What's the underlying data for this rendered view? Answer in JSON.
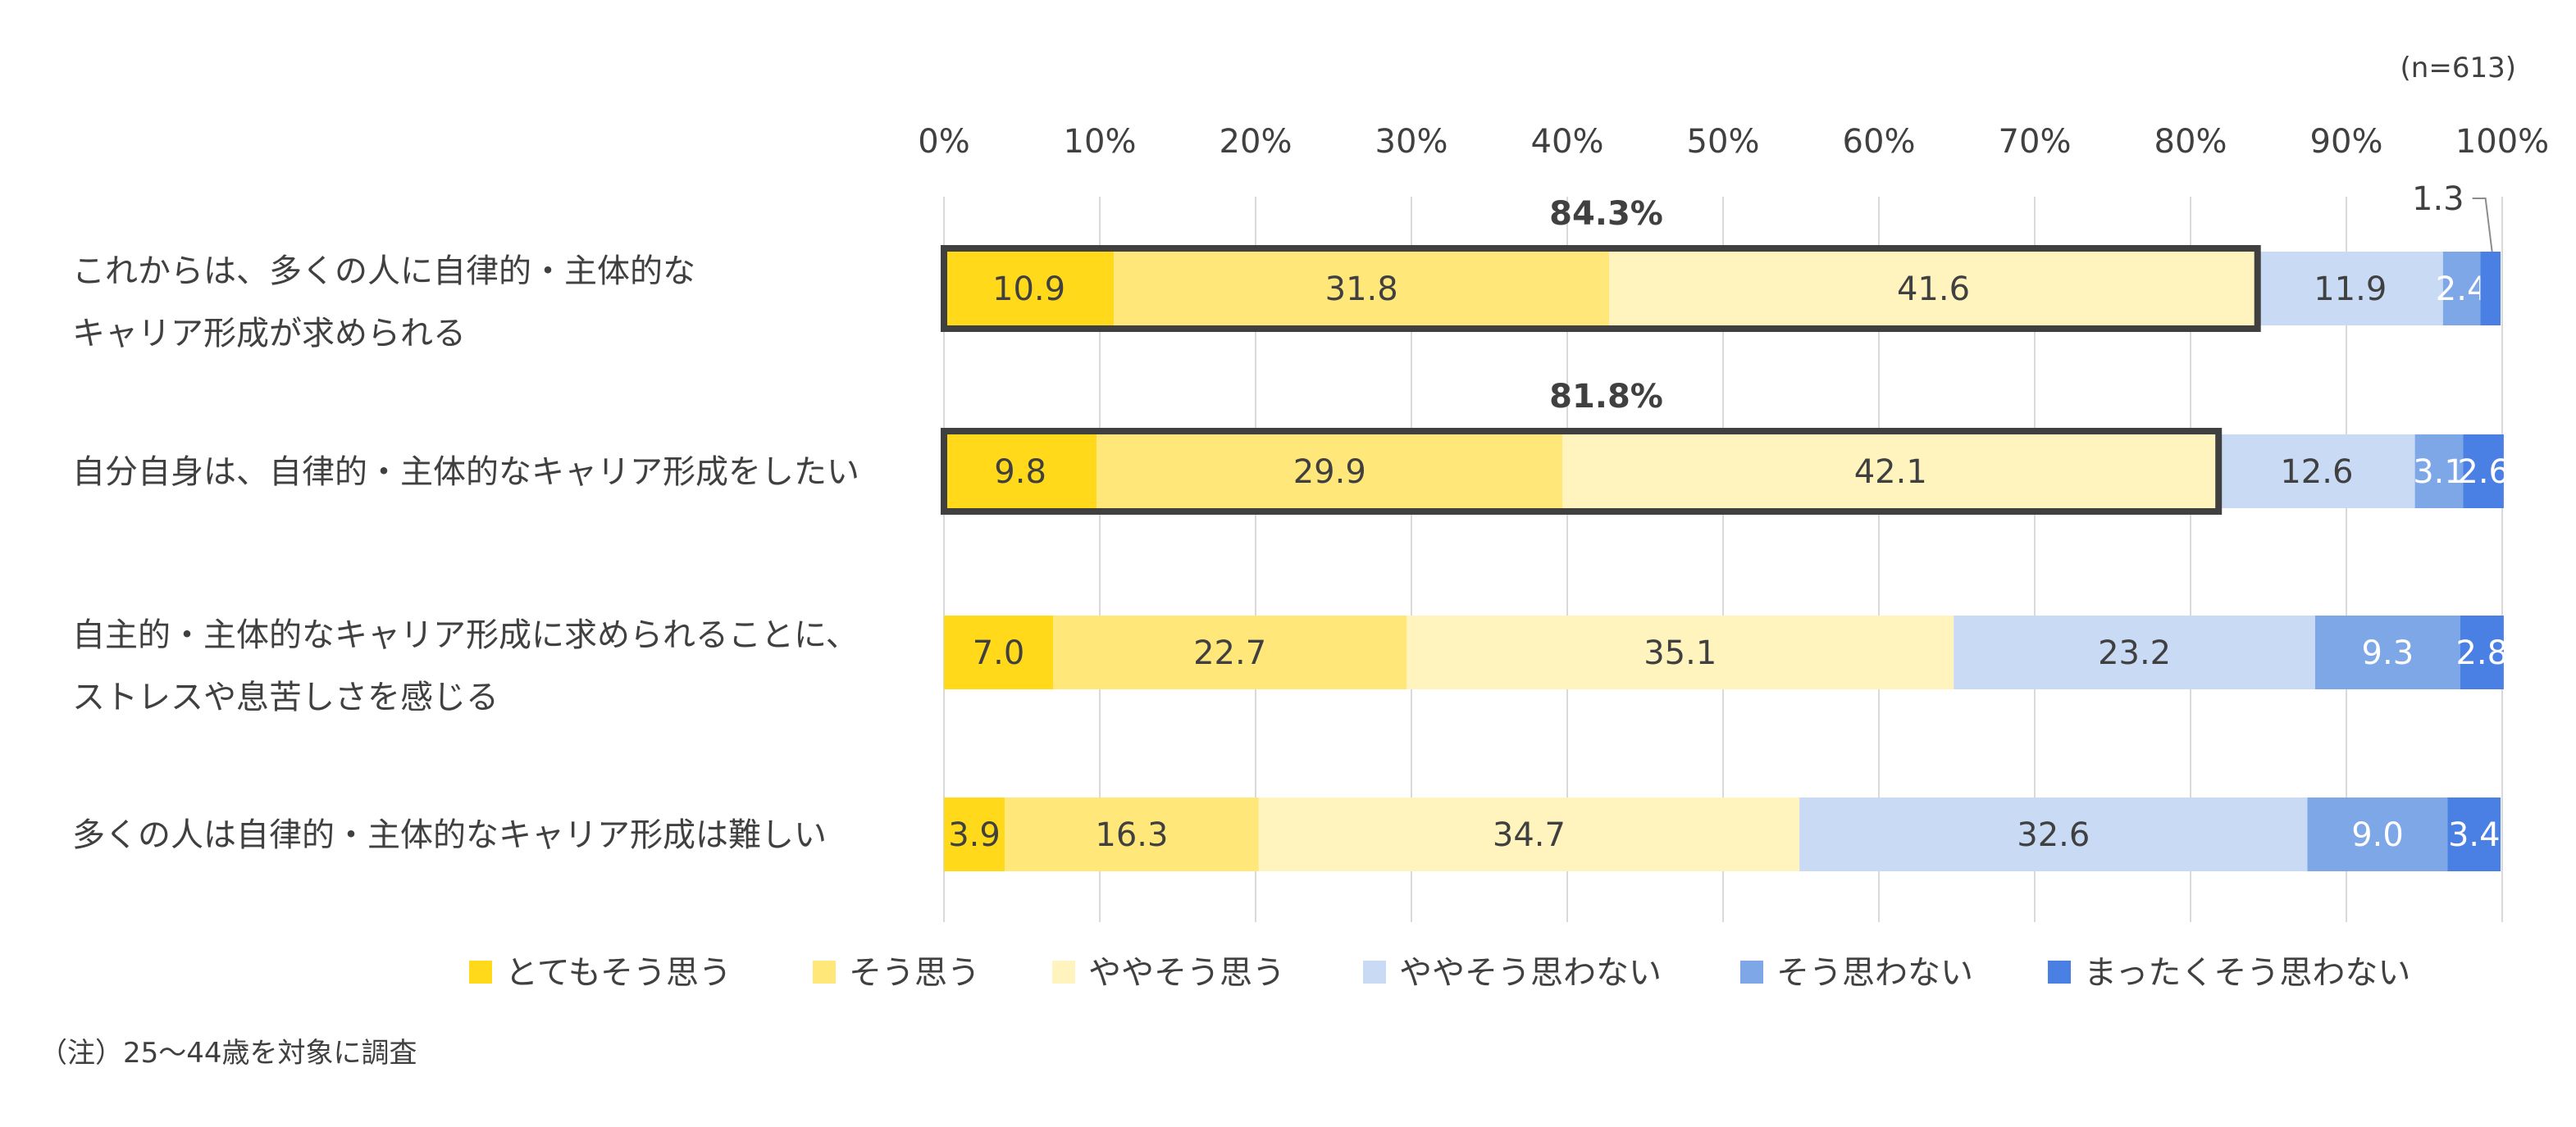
{
  "chart_data": {
    "type": "bar",
    "orientation": "horizontal",
    "stacked": true,
    "sample_note": "(n=613)",
    "footnote": "（注）25〜44歳を対象に調査",
    "x_ticks": [
      "0%",
      "10%",
      "20%",
      "30%",
      "40%",
      "50%",
      "60%",
      "70%",
      "80%",
      "90%",
      "100%"
    ],
    "xlim": [
      0,
      100
    ],
    "grid": true,
    "legend_position": "bottom",
    "categories": [
      [
        "これからは、多くの人に自律的・主体的な",
        "キャリア形成が求められる"
      ],
      [
        "自分自身は、自律的・主体的なキャリア形成をしたい"
      ],
      [
        "自主的・主体的なキャリア形成に求められることに、",
        "ストレスや息苦しさを感じる"
      ],
      [
        "多くの人は自律的・主体的なキャリア形成は難しい"
      ]
    ],
    "series": [
      {
        "name": "とてもそう思う",
        "color": "#FFD91A",
        "label_color": "#404040",
        "values": [
          10.9,
          9.8,
          7.0,
          3.9
        ]
      },
      {
        "name": "そう思う",
        "color": "#FFE77A",
        "label_color": "#404040",
        "values": [
          31.8,
          29.9,
          22.7,
          16.3
        ]
      },
      {
        "name": "ややそう思う",
        "color": "#FFF4BD",
        "label_color": "#404040",
        "values": [
          41.6,
          42.1,
          35.1,
          34.7
        ]
      },
      {
        "name": "ややそう思わない",
        "color": "#C9DAF5",
        "label_color": "#404040",
        "values": [
          11.9,
          12.6,
          23.2,
          32.6
        ]
      },
      {
        "name": "そう思わない",
        "color": "#7EA7E8",
        "label_color": "#ffffff",
        "values": [
          2.4,
          3.1,
          9.3,
          9.0
        ]
      },
      {
        "name": "まったくそう思わない",
        "color": "#4A80E3",
        "label_color": "#ffffff",
        "values": [
          1.3,
          2.6,
          2.8,
          3.4
        ]
      }
    ],
    "value_labels": [
      [
        "10.9",
        "31.8",
        "41.6",
        "11.9",
        "2.4",
        ""
      ],
      [
        "9.8",
        "29.9",
        "42.1",
        "12.6",
        "3.1",
        "2.6"
      ],
      [
        "7.0",
        "22.7",
        "35.1",
        "23.2",
        "9.3",
        "2.8"
      ],
      [
        "3.9",
        "16.3",
        "34.7",
        "32.6",
        "9.0",
        "3.4"
      ]
    ],
    "callout_label": {
      "row": 0,
      "text": "1.3"
    },
    "highlight_totals": [
      {
        "row": 0,
        "text": "84.3%",
        "value": 84.3
      },
      {
        "row": 1,
        "text": "81.8%",
        "value": 81.8
      }
    ]
  }
}
